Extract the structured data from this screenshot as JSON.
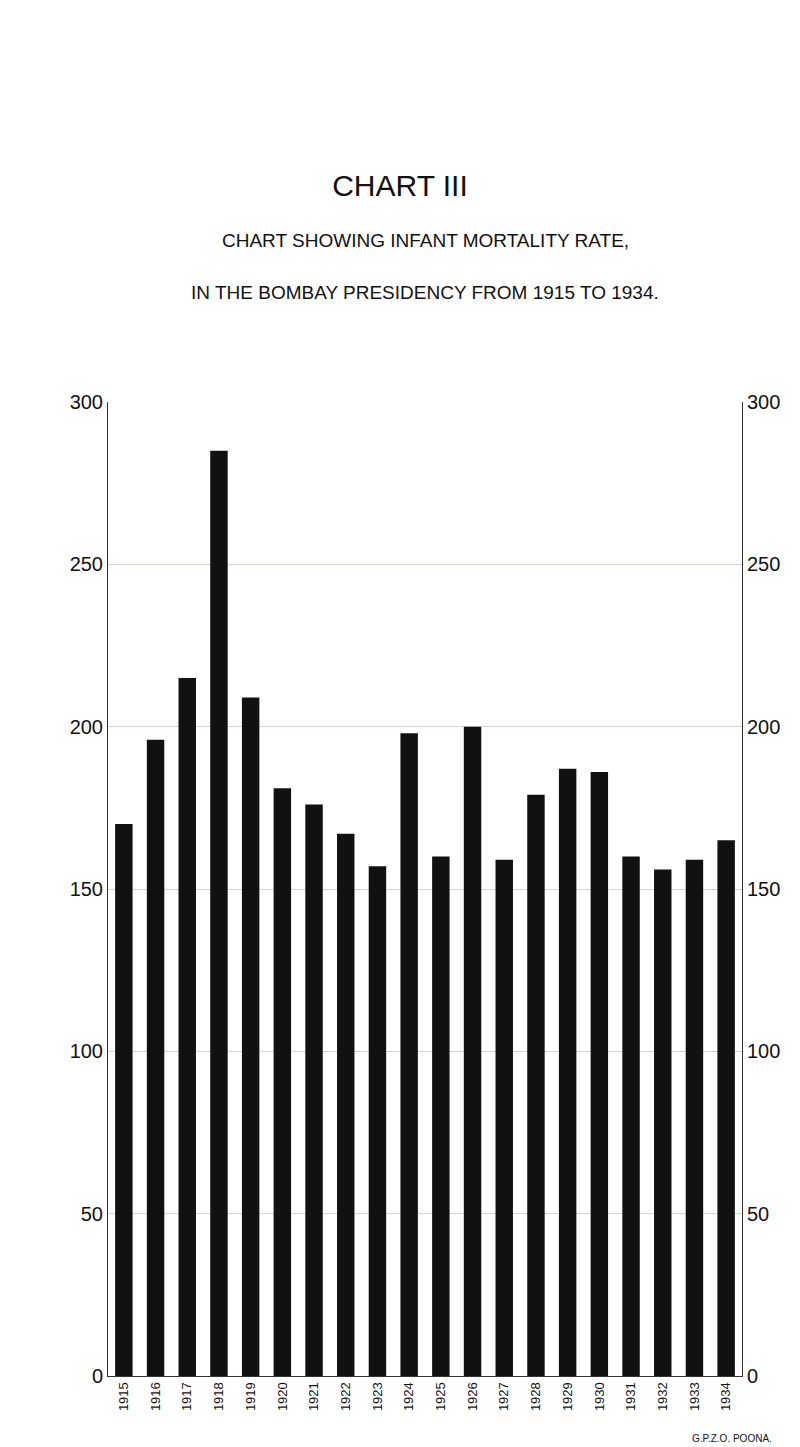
{
  "chart_data": {
    "type": "bar",
    "title": "CHART III",
    "subtitle": [
      "CHART SHOWING INFANT MORTALITY RATE,",
      "IN THE BOMBAY PRESIDENCY FROM 1915 TO 1934."
    ],
    "categories": [
      "1915",
      "1916",
      "1917",
      "1918",
      "1919",
      "1920",
      "1921",
      "1922",
      "1923",
      "1924",
      "1925",
      "1926",
      "1927",
      "1928",
      "1929",
      "1930",
      "1931",
      "1932",
      "1933",
      "1934"
    ],
    "values": [
      170,
      196,
      215,
      285,
      209,
      181,
      176,
      167,
      157,
      198,
      160,
      200,
      159,
      179,
      187,
      186,
      160,
      156,
      159,
      165
    ],
    "color": "#111111",
    "ylim": [
      0,
      300
    ],
    "yticks": [
      0,
      50,
      100,
      150,
      200,
      250,
      300
    ],
    "grid": true,
    "footer": "G.P.Z.O. POONA."
  }
}
